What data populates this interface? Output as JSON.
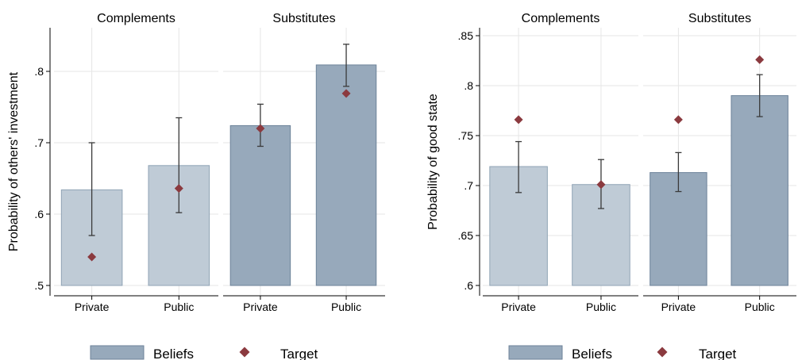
{
  "colors": {
    "beliefs_fill_light": "#bfcbd6",
    "beliefs_stroke_light": "#8fa3b5",
    "beliefs_fill_dark": "#97a9bb",
    "beliefs_stroke_dark": "#6c8299",
    "target": "#8b3a3f",
    "error_bar": "#3a3a3a",
    "grid": "#e6e6e6",
    "axis": "#000000"
  },
  "legend": {
    "beliefs": "Beliefs",
    "target": "Target"
  },
  "chart_data": [
    {
      "type": "bar",
      "ylabel": "Probability of others' investment",
      "ylim": [
        0.5,
        0.85
      ],
      "yticks": [
        0.5,
        0.6,
        0.7,
        0.8
      ],
      "ytick_labels": [
        ".5",
        ".6",
        ".7",
        ".8"
      ],
      "grid": true,
      "legend_placement": "bottom",
      "panels": [
        {
          "title": "Complements",
          "shade": "light",
          "categories": [
            "Private",
            "Public"
          ],
          "beliefs": [
            0.634,
            0.668
          ],
          "ci_low": [
            0.57,
            0.602
          ],
          "ci_high": [
            0.7,
            0.735
          ],
          "target": [
            0.54,
            0.636
          ]
        },
        {
          "title": "Substitutes",
          "shade": "dark",
          "categories": [
            "Private",
            "Public"
          ],
          "beliefs": [
            0.724,
            0.809
          ],
          "ci_low": [
            0.695,
            0.779
          ],
          "ci_high": [
            0.754,
            0.838
          ],
          "target": [
            0.72,
            0.769
          ]
        }
      ]
    },
    {
      "type": "bar",
      "ylabel": "Probability of good state",
      "ylim": [
        0.6,
        0.85
      ],
      "yticks": [
        0.6,
        0.65,
        0.7,
        0.75,
        0.8,
        0.85
      ],
      "ytick_labels": [
        ".6",
        ".65",
        ".7",
        ".75",
        ".8",
        ".85"
      ],
      "grid": true,
      "legend_placement": "bottom",
      "panels": [
        {
          "title": "Complements",
          "shade": "light",
          "categories": [
            "Private",
            "Public"
          ],
          "beliefs": [
            0.719,
            0.701
          ],
          "ci_low": [
            0.693,
            0.677
          ],
          "ci_high": [
            0.744,
            0.726
          ],
          "target": [
            0.766,
            0.701
          ]
        },
        {
          "title": "Substitutes",
          "shade": "dark",
          "categories": [
            "Private",
            "Public"
          ],
          "beliefs": [
            0.713,
            0.79
          ],
          "ci_low": [
            0.694,
            0.769
          ],
          "ci_high": [
            0.733,
            0.811
          ],
          "target": [
            0.766,
            0.826
          ]
        }
      ]
    }
  ]
}
